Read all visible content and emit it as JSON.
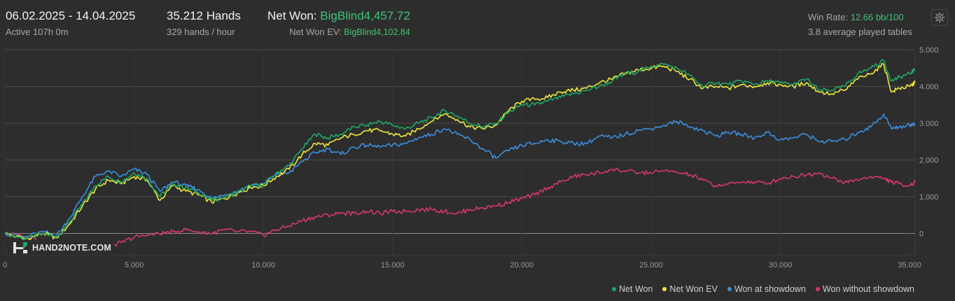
{
  "header": {
    "date_range": "06.02.2025 - 14.04.2025",
    "active": "Active 107h 0m",
    "hands": "35.212 Hands",
    "hands_rate": "329 hands / hour",
    "net_won_label": "Net Won: ",
    "net_won_value": "BigBlind4,457.72",
    "net_won_ev_label": "Net Won  EV: ",
    "net_won_ev_value": "BigBlind4,102.84",
    "win_rate_label": "Win Rate: ",
    "win_rate_value": "12.66 bb/100",
    "tables": "3.8 average played tables",
    "settings_icon": "gear-icon"
  },
  "logo": {
    "text": "HAND2NOTE.COM"
  },
  "chart_data": {
    "type": "line",
    "xlim": [
      0,
      35212
    ],
    "ylim": [
      -600,
      5000
    ],
    "x_ticks": [
      0,
      5000,
      10000,
      15000,
      20000,
      25000,
      30000,
      35000
    ],
    "x_tick_labels": [
      "0",
      "5.000",
      "10.000",
      "15.000",
      "20.000",
      "25.000",
      "30.000",
      "35.000"
    ],
    "y_ticks": [
      0,
      1000,
      2000,
      3000,
      4000,
      5000
    ],
    "y_tick_labels": [
      "0",
      "1.000",
      "2.000",
      "3.000",
      "4.000",
      "5.000"
    ],
    "grid": true,
    "legend_position": "bottom-right",
    "x": [
      0,
      800,
      1500,
      2000,
      2500,
      3000,
      3500,
      4000,
      4500,
      5000,
      5500,
      6000,
      6500,
      7000,
      7500,
      8000,
      8500,
      9000,
      9500,
      10000,
      10500,
      11000,
      11500,
      12000,
      12500,
      13000,
      13500,
      14000,
      14500,
      15000,
      15500,
      16000,
      16500,
      17000,
      17500,
      18000,
      18500,
      19000,
      19500,
      20000,
      20500,
      21000,
      21500,
      22000,
      22500,
      23000,
      23500,
      24000,
      24500,
      25000,
      25500,
      26000,
      26500,
      27000,
      27500,
      28000,
      28500,
      29000,
      29500,
      30000,
      30500,
      31000,
      31500,
      32000,
      32500,
      33000,
      33500,
      34000,
      34300,
      34600,
      35000,
      35212
    ],
    "series": [
      {
        "name": "Net Won",
        "color": "#1fa865",
        "values": [
          0,
          -150,
          0,
          -100,
          300,
          800,
          1300,
          1550,
          1400,
          1650,
          1500,
          1000,
          1350,
          1250,
          1100,
          900,
          1000,
          1100,
          1300,
          1300,
          1650,
          1850,
          2300,
          2700,
          2600,
          2700,
          2900,
          2950,
          3050,
          2950,
          2850,
          3000,
          3150,
          3350,
          3200,
          3000,
          2900,
          3000,
          3300,
          3500,
          3500,
          3600,
          3700,
          3800,
          3900,
          4000,
          4150,
          4350,
          4400,
          4550,
          4600,
          4500,
          4300,
          4000,
          4100,
          4050,
          4150,
          4050,
          4150,
          4100,
          4050,
          4200,
          3900,
          3900,
          4000,
          4350,
          4500,
          4700,
          4150,
          4250,
          4350,
          4458
        ]
      },
      {
        "name": "Net Won  EV",
        "color": "#f0ea3a",
        "values": [
          0,
          -150,
          0,
          -120,
          250,
          750,
          1200,
          1450,
          1350,
          1550,
          1450,
          900,
          1300,
          1150,
          1050,
          850,
          950,
          1100,
          1250,
          1300,
          1550,
          1750,
          2150,
          2450,
          2400,
          2600,
          2700,
          2800,
          2800,
          2700,
          2650,
          2850,
          3050,
          3250,
          3100,
          2900,
          2850,
          2950,
          3350,
          3600,
          3650,
          3700,
          3850,
          3900,
          3950,
          4100,
          4200,
          4350,
          4450,
          4500,
          4550,
          4400,
          4200,
          3950,
          4000,
          3950,
          4050,
          4000,
          4100,
          4050,
          4000,
          4100,
          3850,
          3800,
          3900,
          4200,
          4350,
          4600,
          3850,
          3950,
          4000,
          4103
        ]
      },
      {
        "name": "Won at showdown",
        "color": "#3a8fe0",
        "values": [
          0,
          -100,
          50,
          -50,
          400,
          1000,
          1550,
          1700,
          1550,
          1750,
          1600,
          1150,
          1400,
          1300,
          1200,
          950,
          1050,
          1150,
          1300,
          1350,
          1600,
          1650,
          1950,
          2200,
          2300,
          2150,
          2350,
          2400,
          2350,
          2400,
          2450,
          2600,
          2700,
          2850,
          2700,
          2550,
          2300,
          2050,
          2250,
          2400,
          2450,
          2550,
          2500,
          2450,
          2450,
          2650,
          2600,
          2700,
          2800,
          2850,
          2950,
          3050,
          2900,
          2800,
          2650,
          2750,
          2700,
          2600,
          2750,
          2550,
          2600,
          2700,
          2500,
          2500,
          2550,
          2750,
          2900,
          3250,
          2850,
          2900,
          2950,
          3000
        ]
      },
      {
        "name": "Won without showdown",
        "color": "#d63868",
        "values": [
          0,
          -80,
          -200,
          -250,
          -300,
          -400,
          -400,
          -350,
          -250,
          -100,
          -50,
          0,
          50,
          100,
          50,
          0,
          100,
          50,
          50,
          -50,
          100,
          200,
          350,
          450,
          500,
          550,
          550,
          600,
          550,
          600,
          600,
          650,
          650,
          600,
          550,
          650,
          700,
          750,
          850,
          950,
          1050,
          1250,
          1400,
          1550,
          1600,
          1650,
          1750,
          1700,
          1650,
          1650,
          1700,
          1650,
          1600,
          1450,
          1300,
          1350,
          1400,
          1400,
          1350,
          1500,
          1550,
          1600,
          1650,
          1500,
          1400,
          1450,
          1550,
          1500,
          1400,
          1350,
          1300,
          1400
        ]
      }
    ]
  }
}
